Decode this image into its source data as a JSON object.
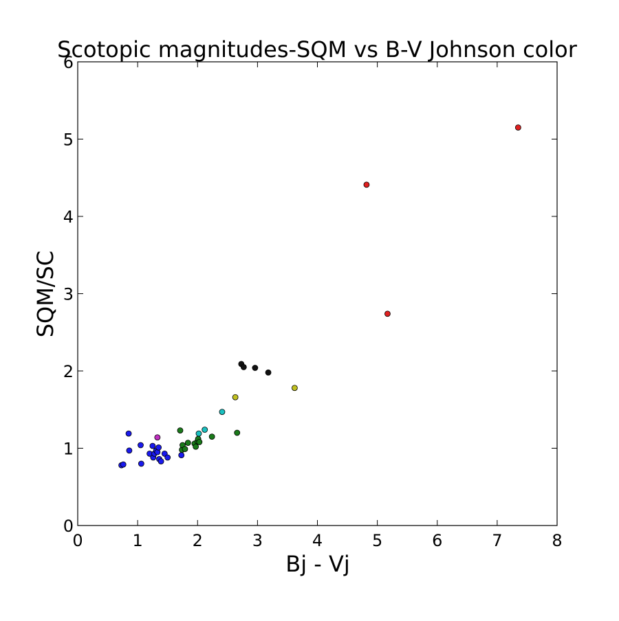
{
  "chart_data": {
    "type": "scatter",
    "title": "Scotopic magnitudes-SQM vs B-V Johnson color",
    "xlabel": "Bj - Vj",
    "ylabel": "SQM/SC",
    "xlim": [
      0,
      8
    ],
    "ylim": [
      0,
      6
    ],
    "xticks": [
      0,
      1,
      2,
      3,
      4,
      5,
      6,
      7,
      8
    ],
    "yticks": [
      0,
      1,
      2,
      3,
      4,
      5,
      6
    ],
    "xtick_labels": [
      "0",
      "1",
      "2",
      "3",
      "4",
      "5",
      "6",
      "7",
      "8"
    ],
    "ytick_labels": [
      "0",
      "1",
      "2",
      "3",
      "4",
      "5",
      "6"
    ],
    "grid": false,
    "legend": "none",
    "series": [
      {
        "color": "#1a1aee",
        "points": [
          [
            0.73,
            0.78
          ],
          [
            0.76,
            0.79
          ],
          [
            0.85,
            1.19
          ],
          [
            0.86,
            0.97
          ],
          [
            1.05,
            1.04
          ],
          [
            1.06,
            0.8
          ],
          [
            1.2,
            0.93
          ],
          [
            1.25,
            1.03
          ],
          [
            1.26,
            0.88
          ],
          [
            1.28,
            0.93
          ],
          [
            1.31,
            0.97
          ],
          [
            1.33,
            0.95
          ],
          [
            1.35,
            1.01
          ],
          [
            1.36,
            0.86
          ],
          [
            1.39,
            0.83
          ],
          [
            1.45,
            0.93
          ],
          [
            1.5,
            0.88
          ],
          [
            1.73,
            0.91
          ]
        ]
      },
      {
        "color": "#1a7a1a",
        "points": [
          [
            1.71,
            1.23
          ],
          [
            1.74,
            0.98
          ],
          [
            1.75,
            1.04
          ],
          [
            1.79,
            0.99
          ],
          [
            1.84,
            1.07
          ],
          [
            1.95,
            1.06
          ],
          [
            1.97,
            1.02
          ],
          [
            2.0,
            1.09
          ],
          [
            2.01,
            1.12
          ],
          [
            2.03,
            1.08
          ],
          [
            2.24,
            1.15
          ],
          [
            2.66,
            1.2
          ]
        ]
      },
      {
        "color": "#1ac0c0",
        "points": [
          [
            2.02,
            1.19
          ],
          [
            2.12,
            1.24
          ],
          [
            2.41,
            1.47
          ]
        ]
      },
      {
        "color": "#c030c0",
        "points": [
          [
            1.33,
            1.14
          ]
        ]
      },
      {
        "color": "#c0c020",
        "points": [
          [
            2.63,
            1.66
          ],
          [
            3.62,
            1.78
          ]
        ]
      },
      {
        "color": "#111111",
        "points": [
          [
            2.73,
            2.09
          ],
          [
            2.77,
            2.05
          ],
          [
            2.96,
            2.04
          ],
          [
            3.18,
            1.98
          ]
        ]
      },
      {
        "color": "#e02020",
        "points": [
          [
            4.82,
            4.41
          ],
          [
            5.17,
            2.74
          ],
          [
            7.35,
            5.15
          ]
        ]
      }
    ]
  }
}
